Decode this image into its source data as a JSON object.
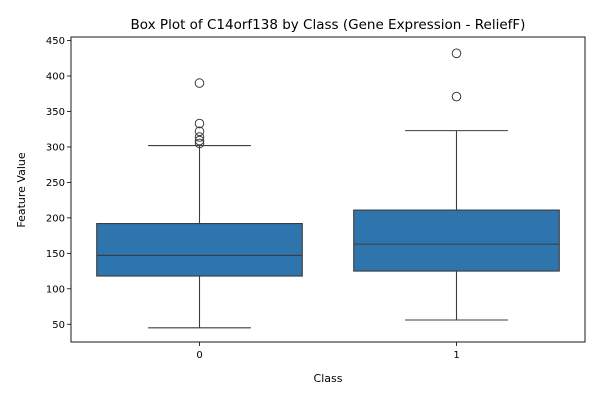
{
  "chart_data": {
    "type": "box",
    "title": "Box Plot of C14orf138 by Class (Gene Expression - ReliefF)",
    "xlabel": "Class",
    "ylabel": "Feature Value",
    "ylim": [
      25,
      455
    ],
    "yticks": [
      50,
      100,
      150,
      200,
      250,
      300,
      350,
      400,
      450
    ],
    "categories": [
      "0",
      "1"
    ],
    "box_color": "#2e74ad",
    "line_color": "#3d3d3d",
    "boxes": [
      {
        "category": "0",
        "whisker_low": 45,
        "q1": 118,
        "median": 147,
        "q3": 192,
        "whisker_high": 302,
        "outliers": [
          305,
          309,
          314,
          322,
          333,
          390
        ]
      },
      {
        "category": "1",
        "whisker_low": 56,
        "q1": 125,
        "median": 163,
        "q3": 211,
        "whisker_high": 323,
        "outliers": [
          371,
          432
        ]
      }
    ]
  }
}
